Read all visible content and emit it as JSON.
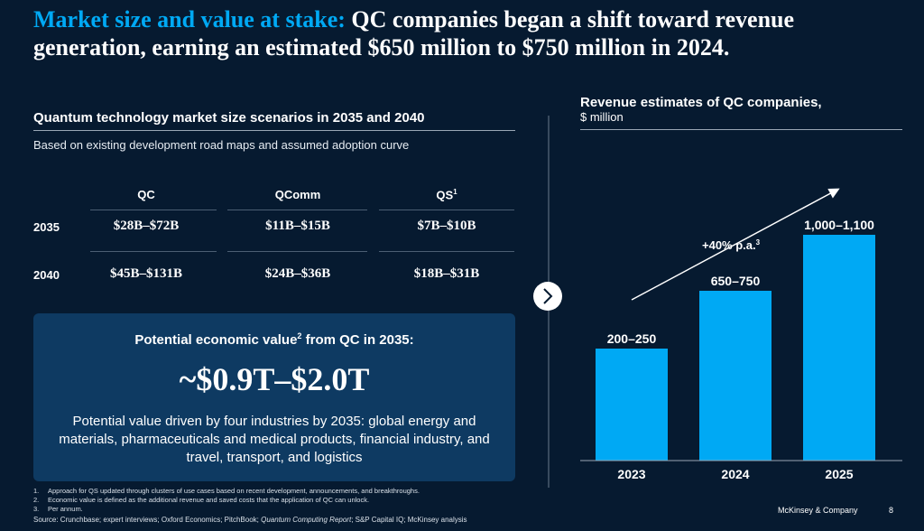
{
  "title": {
    "highlight": "Market size and value at stake:",
    "text": "QC companies began a shift toward revenue generation, earning an estimated $650 million to $750 million in 2024."
  },
  "market": {
    "heading": "Quantum technology market size scenarios in 2035 and 2040",
    "subheading": "Based on existing development road maps and assumed adoption curve",
    "columns": [
      {
        "label": "QC"
      },
      {
        "label": "QComm"
      },
      {
        "label": "QS",
        "note": "1"
      }
    ],
    "rows": [
      {
        "year": "2035",
        "cells": [
          "$28B–$72B",
          "$11B–$15B",
          "$7B–$10B"
        ]
      },
      {
        "year": "2040",
        "cells": [
          "$45B–$131B",
          "$24B–$36B",
          "$18B–$31B"
        ]
      }
    ]
  },
  "value_box": {
    "heading": "Potential economic value",
    "heading_note": "2",
    "heading_end": "from QC in 2035:",
    "value": "~$0.9T–$2.0T",
    "text": "Potential value driven by four industries by 2035: global energy and materials, pharmaceuticals and medical products, financial industry, and travel, transport, and logistics"
  },
  "revenue": {
    "title": "Revenue estimates of QC companies,",
    "unit": "$ million",
    "growth": "+40% p.a.",
    "growth_note": "3",
    "bars": [
      {
        "year": "2023",
        "label": "200–250"
      },
      {
        "year": "2024",
        "label": "650–750"
      },
      {
        "year": "2025",
        "label": "1,000–1,100"
      }
    ]
  },
  "footnotes": [
    {
      "number": "1.",
      "text": "Approach for QS updated through clusters of use cases based on recent development, announcements, and breakthroughs."
    },
    {
      "number": "2.",
      "text": "Economic value is defined as the additional revenue and saved costs that the application of QC can unlock."
    },
    {
      "number": "3.",
      "text": "Per annum."
    }
  ],
  "source": {
    "prefix": "Source: Crunchbase; expert interviews; Oxford Economics; PitchBook;",
    "italic": "Quantum Computing Report",
    "suffix": "; S&P Capital IQ; McKinsey analysis"
  },
  "footer": {
    "brand": "McKinsey & Company",
    "page": "8"
  }
}
